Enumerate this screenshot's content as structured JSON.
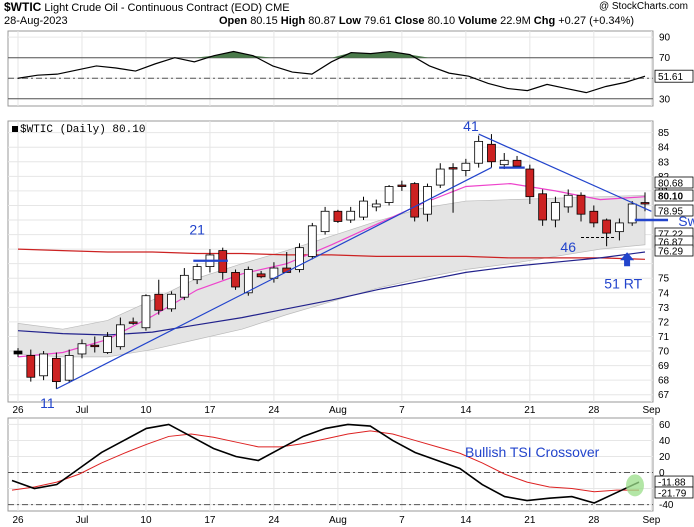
{
  "header": {
    "symbol": "$WTIC",
    "description": "Light Crude Oil - Continuous Contract (EOD)",
    "exchange": "CME",
    "copyright": "@ StockCharts.com",
    "date": "28-Aug-2023",
    "open_label": "Open",
    "open": "80.15",
    "high_label": "High",
    "high": "80.87",
    "low_label": "Low",
    "low": "79.61",
    "close_label": "Close",
    "close": "80.10",
    "volume_label": "Volume",
    "volume": "22.9M",
    "chg_label": "Chg",
    "chg": "+0.27 (+0.34%)"
  },
  "panes": {
    "price_label": "$WTIC (Daily) 80.10",
    "rsi_value_label": "51.61",
    "price_value_labels": [
      "80.68",
      "80.10",
      "78.95",
      "77.22",
      "76.87",
      "76.29"
    ],
    "tsi_value_labels": [
      "-11.88",
      "-21.79"
    ]
  },
  "annotations": {
    "a21": "21",
    "a41": "41",
    "a46": "46",
    "a11": "11",
    "a51": "51 RT",
    "swing_low": "Swing Low",
    "tsi_crossover": "Bullish TSI Crossover"
  },
  "colors": {
    "up_candle": "#ffffff",
    "down_candle": "#cc2222",
    "annotation": "#2244cc",
    "ma_long": "#cc2222",
    "ma_mid": "#22228c",
    "ma_short": "#ee44cc",
    "band_fill": "#e4e4e4",
    "tsi_line": "#000000",
    "tsi_signal": "#dd2222",
    "rsi_fill": "#4a7a4a"
  },
  "chart_data": {
    "type": "candlestick",
    "x_ticks": [
      "26",
      "Jul",
      "10",
      "17",
      "24",
      "Aug",
      "7",
      "14",
      "21",
      "28",
      "Sep"
    ],
    "price_axis": {
      "ticks": [
        67,
        68,
        69,
        70,
        71,
        72,
        73,
        74,
        75,
        76,
        77,
        78,
        79,
        80,
        81,
        82,
        83,
        84,
        85
      ],
      "ylim": [
        66.5,
        85.8
      ]
    },
    "candles": [
      {
        "o": 70.0,
        "h": 70.2,
        "l": 69.6,
        "c": 69.8
      },
      {
        "o": 69.7,
        "h": 70.1,
        "l": 67.9,
        "c": 68.2
      },
      {
        "o": 68.3,
        "h": 70.0,
        "l": 68.0,
        "c": 69.8
      },
      {
        "o": 69.5,
        "h": 69.9,
        "l": 67.4,
        "c": 67.9
      },
      {
        "o": 68.0,
        "h": 70.1,
        "l": 67.8,
        "c": 69.7
      },
      {
        "o": 69.8,
        "h": 70.8,
        "l": 69.5,
        "c": 70.5
      },
      {
        "o": 70.4,
        "h": 71.0,
        "l": 69.9,
        "c": 70.3
      },
      {
        "o": 69.9,
        "h": 71.3,
        "l": 69.8,
        "c": 71.0
      },
      {
        "o": 70.3,
        "h": 72.3,
        "l": 70.1,
        "c": 71.8
      },
      {
        "o": 72.0,
        "h": 72.3,
        "l": 71.8,
        "c": 71.9
      },
      {
        "o": 71.6,
        "h": 73.9,
        "l": 71.4,
        "c": 73.8
      },
      {
        "o": 73.9,
        "h": 74.9,
        "l": 72.5,
        "c": 72.8
      },
      {
        "o": 72.9,
        "h": 74.1,
        "l": 72.7,
        "c": 73.9
      },
      {
        "o": 73.7,
        "h": 75.7,
        "l": 73.5,
        "c": 75.2
      },
      {
        "o": 74.9,
        "h": 76.0,
        "l": 74.6,
        "c": 75.8
      },
      {
        "o": 75.8,
        "h": 77.0,
        "l": 75.4,
        "c": 76.6
      },
      {
        "o": 76.9,
        "h": 77.1,
        "l": 74.9,
        "c": 75.4
      },
      {
        "o": 75.4,
        "h": 75.6,
        "l": 74.2,
        "c": 74.4
      },
      {
        "o": 74.0,
        "h": 75.8,
        "l": 73.8,
        "c": 75.6
      },
      {
        "o": 75.3,
        "h": 75.5,
        "l": 75.0,
        "c": 75.1
      },
      {
        "o": 75.0,
        "h": 76.1,
        "l": 74.7,
        "c": 75.7
      },
      {
        "o": 75.7,
        "h": 76.8,
        "l": 75.4,
        "c": 75.4
      },
      {
        "o": 75.6,
        "h": 77.4,
        "l": 75.4,
        "c": 77.1
      },
      {
        "o": 76.5,
        "h": 78.8,
        "l": 76.3,
        "c": 78.6
      },
      {
        "o": 78.2,
        "h": 79.9,
        "l": 78.0,
        "c": 79.6
      },
      {
        "o": 79.6,
        "h": 79.7,
        "l": 78.8,
        "c": 78.9
      },
      {
        "o": 79.0,
        "h": 79.9,
        "l": 78.8,
        "c": 79.6
      },
      {
        "o": 79.2,
        "h": 80.6,
        "l": 79.0,
        "c": 80.3
      },
      {
        "o": 79.9,
        "h": 80.4,
        "l": 79.6,
        "c": 80.1
      },
      {
        "o": 80.2,
        "h": 81.4,
        "l": 80.0,
        "c": 81.3
      },
      {
        "o": 81.4,
        "h": 81.7,
        "l": 81.0,
        "c": 81.3
      },
      {
        "o": 81.5,
        "h": 81.6,
        "l": 78.9,
        "c": 79.2
      },
      {
        "o": 79.4,
        "h": 81.5,
        "l": 78.9,
        "c": 81.3
      },
      {
        "o": 81.4,
        "h": 82.9,
        "l": 81.2,
        "c": 82.5
      },
      {
        "o": 82.6,
        "h": 82.9,
        "l": 79.5,
        "c": 82.5
      },
      {
        "o": 82.4,
        "h": 83.2,
        "l": 82.0,
        "c": 82.9
      },
      {
        "o": 82.9,
        "h": 84.8,
        "l": 82.6,
        "c": 84.4
      },
      {
        "o": 84.2,
        "h": 84.9,
        "l": 82.6,
        "c": 83.0
      },
      {
        "o": 82.8,
        "h": 83.6,
        "l": 82.5,
        "c": 83.1
      },
      {
        "o": 83.1,
        "h": 83.4,
        "l": 82.6,
        "c": 82.7
      },
      {
        "o": 82.5,
        "h": 82.8,
        "l": 80.1,
        "c": 80.6
      },
      {
        "o": 80.8,
        "h": 81.1,
        "l": 78.6,
        "c": 79.0
      },
      {
        "o": 79.0,
        "h": 80.6,
        "l": 78.5,
        "c": 80.2
      },
      {
        "o": 79.9,
        "h": 81.1,
        "l": 79.5,
        "c": 80.7
      },
      {
        "o": 80.7,
        "h": 80.9,
        "l": 78.9,
        "c": 79.4
      },
      {
        "o": 79.6,
        "h": 80.0,
        "l": 78.5,
        "c": 78.8
      },
      {
        "o": 79.0,
        "h": 79.1,
        "l": 77.2,
        "c": 78.1
      },
      {
        "o": 78.2,
        "h": 79.1,
        "l": 77.6,
        "c": 78.8
      },
      {
        "o": 78.8,
        "h": 80.3,
        "l": 78.6,
        "c": 80.1
      },
      {
        "o": 80.2,
        "h": 80.9,
        "l": 79.6,
        "c": 80.1
      }
    ],
    "ma_long": [
      77.0,
      76.9,
      76.8,
      76.8,
      76.7,
      76.7,
      76.6,
      76.6,
      76.5,
      76.5,
      76.5,
      76.4,
      76.4,
      76.4,
      76.3
    ],
    "ma_mid": [
      71.4,
      71.2,
      71.1,
      71.3,
      71.8,
      72.3,
      72.9,
      73.5,
      74.2,
      74.8,
      75.4,
      75.8,
      76.1,
      76.4,
      76.8
    ],
    "ma_short": [
      69.6,
      69.9,
      70.8,
      72.4,
      74.2,
      75.3,
      76.0,
      77.3,
      78.7,
      80.1,
      81.3,
      81.5,
      81.0,
      80.4,
      80.6
    ],
    "band_upper": [
      71.9,
      71.5,
      72.1,
      73.5,
      75.0,
      76.0,
      76.9,
      77.9,
      78.9,
      79.8,
      80.3,
      80.4,
      80.5,
      80.6,
      80.7
    ],
    "band_lower": [
      69.8,
      69.6,
      69.6,
      70.1,
      70.8,
      71.5,
      72.5,
      73.4,
      74.3,
      75.0,
      75.6,
      76.0,
      76.5,
      77.0,
      77.3
    ],
    "rsi": {
      "ticks": [
        30,
        50,
        70,
        90
      ],
      "ylim": [
        23,
        96
      ],
      "ref_lines": [
        30,
        50,
        70
      ],
      "values": [
        50,
        53,
        54,
        58,
        62,
        60,
        57,
        64,
        70,
        66,
        72,
        76,
        72,
        62,
        56,
        54,
        66,
        75,
        74,
        76,
        73,
        62,
        55,
        52,
        45,
        40,
        38,
        44,
        40,
        36,
        42,
        46,
        52
      ]
    },
    "tsi": {
      "ticks": [
        -40,
        -20,
        0,
        20,
        40,
        60
      ],
      "ylim": [
        -48,
        68
      ],
      "ref_lines": [
        -40,
        0
      ],
      "tsi_values": [
        -10,
        -20,
        -15,
        5,
        25,
        40,
        55,
        60,
        45,
        30,
        20,
        15,
        30,
        45,
        55,
        60,
        58,
        40,
        25,
        15,
        5,
        -15,
        -30,
        -35,
        -32,
        -30,
        -38,
        -25,
        -12
      ],
      "signal_values": [
        -22,
        -18,
        -12,
        -2,
        12,
        24,
        35,
        45,
        48,
        44,
        38,
        32,
        32,
        36,
        42,
        48,
        52,
        48,
        40,
        32,
        24,
        12,
        -2,
        -12,
        -18,
        -20,
        -24,
        -22,
        -22
      ]
    }
  }
}
